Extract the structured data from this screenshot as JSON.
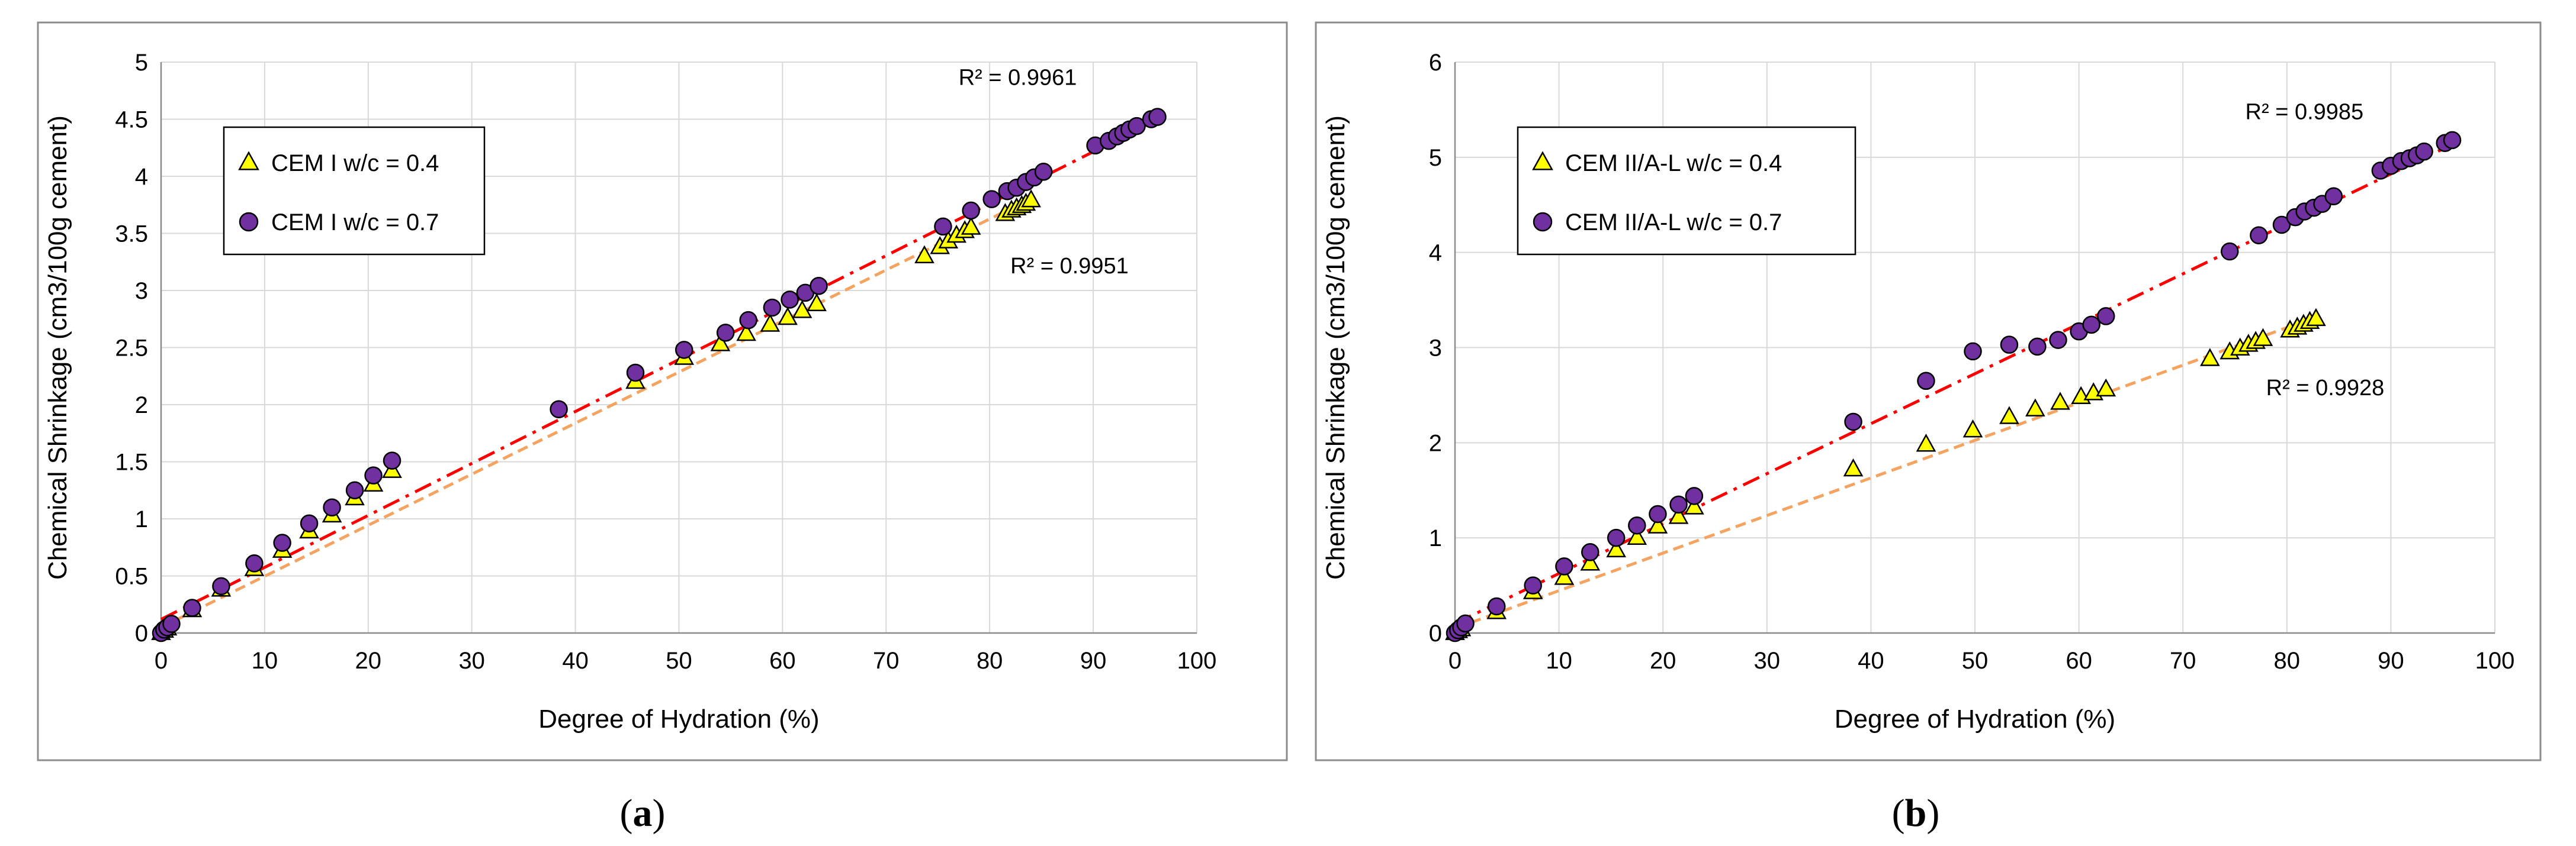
{
  "chart_data": [
    {
      "type": "scatter",
      "panel_label": "a",
      "xlabel": "Degree of Hydration (%)",
      "ylabel": "Chemical Shrinkage (cm3/100g cement)",
      "xlim": [
        0,
        100
      ],
      "ylim": [
        0,
        5
      ],
      "xticks": [
        0,
        10,
        20,
        30,
        40,
        50,
        60,
        70,
        80,
        90,
        100
      ],
      "yticks": [
        0,
        0.5,
        1,
        1.5,
        2,
        2.5,
        3,
        3.5,
        4,
        4.5,
        5
      ],
      "grid": true,
      "legend_position": "upper-left",
      "series": [
        {
          "name": "CEM  I w/c = 0.4",
          "marker": "triangle",
          "color": "#FFFF00",
          "trend_color": "#F4A460",
          "trend": {
            "slope": 0.0447,
            "intercept": 0.05,
            "x_range": [
              0,
              84
            ]
          },
          "r2_label": "R² = 0.9951",
          "r2_at": [
            82,
            3.15
          ],
          "points": [
            [
              0,
              0
            ],
            [
              0.3,
              0.02
            ],
            [
              0.6,
              0.04
            ],
            [
              3,
              0.2
            ],
            [
              5.8,
              0.38
            ],
            [
              9,
              0.56
            ],
            [
              11.7,
              0.72
            ],
            [
              14.3,
              0.89
            ],
            [
              16.5,
              1.03
            ],
            [
              18.7,
              1.18
            ],
            [
              20.5,
              1.3
            ],
            [
              22.3,
              1.42
            ],
            [
              45.8,
              2.2
            ],
            [
              50.5,
              2.41
            ],
            [
              54,
              2.53
            ],
            [
              56.5,
              2.62
            ],
            [
              58.8,
              2.7
            ],
            [
              60.5,
              2.76
            ],
            [
              61.9,
              2.82
            ],
            [
              63.3,
              2.88
            ],
            [
              73.7,
              3.3
            ],
            [
              75.2,
              3.38
            ],
            [
              76,
              3.43
            ],
            [
              76.8,
              3.48
            ],
            [
              77.6,
              3.52
            ],
            [
              78.2,
              3.55
            ],
            [
              81.5,
              3.67
            ],
            [
              82.1,
              3.7
            ],
            [
              82.6,
              3.72
            ],
            [
              83.1,
              3.74
            ],
            [
              83.5,
              3.76
            ],
            [
              84,
              3.79
            ]
          ]
        },
        {
          "name": "CEM  I w/c = 0.7",
          "marker": "circle",
          "color": "#7030A0",
          "trend_color": "#FF0000",
          "trend": {
            "slope": 0.0455,
            "intercept": 0.12,
            "x_range": [
              0,
              96
            ]
          },
          "r2_label": "R² = 0.9961",
          "r2_at": [
            77,
            4.8
          ],
          "points": [
            [
              0,
              0
            ],
            [
              0.3,
              0.03
            ],
            [
              0.6,
              0.05
            ],
            [
              1,
              0.08
            ],
            [
              3,
              0.22
            ],
            [
              5.8,
              0.41
            ],
            [
              9,
              0.61
            ],
            [
              11.7,
              0.79
            ],
            [
              14.3,
              0.96
            ],
            [
              16.5,
              1.1
            ],
            [
              18.7,
              1.25
            ],
            [
              20.5,
              1.38
            ],
            [
              22.3,
              1.51
            ],
            [
              38.4,
              1.96
            ],
            [
              45.8,
              2.28
            ],
            [
              50.5,
              2.48
            ],
            [
              54.5,
              2.63
            ],
            [
              56.7,
              2.74
            ],
            [
              59,
              2.85
            ],
            [
              60.7,
              2.92
            ],
            [
              62.2,
              2.98
            ],
            [
              63.5,
              3.04
            ],
            [
              75.5,
              3.56
            ],
            [
              78.2,
              3.7
            ],
            [
              80.2,
              3.8
            ],
            [
              81.7,
              3.87
            ],
            [
              82.6,
              3.9
            ],
            [
              83.5,
              3.95
            ],
            [
              84.3,
              3.99
            ],
            [
              85.2,
              4.04
            ],
            [
              90.2,
              4.27
            ],
            [
              91.5,
              4.31
            ],
            [
              92.3,
              4.35
            ],
            [
              92.9,
              4.38
            ],
            [
              93.5,
              4.41
            ],
            [
              94.2,
              4.44
            ],
            [
              95.6,
              4.5
            ],
            [
              96.2,
              4.52
            ]
          ]
        }
      ]
    },
    {
      "type": "scatter",
      "panel_label": "b",
      "xlabel": "Degree of Hydration (%)",
      "ylabel": "Chemical Shrinkage (cm3/100g cement)",
      "xlim": [
        0,
        100
      ],
      "ylim": [
        0,
        6
      ],
      "xticks": [
        0,
        10,
        20,
        30,
        40,
        50,
        60,
        70,
        80,
        90,
        100
      ],
      "yticks": [
        0,
        1,
        2,
        3,
        4,
        5,
        6
      ],
      "grid": true,
      "legend_position": "upper-left",
      "series": [
        {
          "name": "CEM  II/A-L w/c = 0.4",
          "marker": "triangle",
          "color": "#FFFF00",
          "trend_color": "#F4A460",
          "trend": {
            "slope": 0.0395,
            "intercept": 0.05,
            "x_range": [
              0,
              83
            ]
          },
          "r2_label": "R² = 0.9928",
          "r2_at": [
            78,
            2.5
          ],
          "points": [
            [
              0,
              0
            ],
            [
              0.3,
              0.02
            ],
            [
              0.6,
              0.04
            ],
            [
              4,
              0.22
            ],
            [
              7.5,
              0.43
            ],
            [
              10.5,
              0.58
            ],
            [
              13,
              0.73
            ],
            [
              15.5,
              0.87
            ],
            [
              17.5,
              1.0
            ],
            [
              19.5,
              1.12
            ],
            [
              21.5,
              1.22
            ],
            [
              23,
              1.32
            ],
            [
              38.3,
              1.72
            ],
            [
              45.3,
              1.98
            ],
            [
              49.8,
              2.13
            ],
            [
              53.3,
              2.27
            ],
            [
              55.8,
              2.35
            ],
            [
              58.2,
              2.42
            ],
            [
              60.2,
              2.48
            ],
            [
              61.4,
              2.52
            ],
            [
              62.6,
              2.56
            ],
            [
              72.6,
              2.88
            ],
            [
              74.5,
              2.95
            ],
            [
              75.5,
              2.99
            ],
            [
              76.3,
              3.03
            ],
            [
              77,
              3.06
            ],
            [
              77.7,
              3.09
            ],
            [
              80.3,
              3.18
            ],
            [
              81,
              3.21
            ],
            [
              81.6,
              3.24
            ],
            [
              82.2,
              3.27
            ],
            [
              82.8,
              3.3
            ]
          ]
        },
        {
          "name": "CEM  II/A-L w/c = 0.7",
          "marker": "circle",
          "color": "#7030A0",
          "trend_color": "#FF0000",
          "trend": {
            "slope": 0.0525,
            "intercept": 0.1,
            "x_range": [
              0,
              96
            ]
          },
          "r2_label": "R² = 0.9985",
          "r2_at": [
            76,
            5.4
          ],
          "points": [
            [
              0,
              0
            ],
            [
              0.3,
              0.03
            ],
            [
              0.6,
              0.06
            ],
            [
              1,
              0.1
            ],
            [
              4,
              0.28
            ],
            [
              7.5,
              0.5
            ],
            [
              10.5,
              0.7
            ],
            [
              13,
              0.85
            ],
            [
              15.5,
              1.0
            ],
            [
              17.5,
              1.13
            ],
            [
              19.5,
              1.25
            ],
            [
              21.5,
              1.35
            ],
            [
              23,
              1.44
            ],
            [
              38.3,
              2.22
            ],
            [
              45.3,
              2.65
            ],
            [
              49.8,
              2.96
            ],
            [
              53.3,
              3.03
            ],
            [
              56,
              3.01
            ],
            [
              58,
              3.08
            ],
            [
              60,
              3.17
            ],
            [
              61.2,
              3.24
            ],
            [
              62.6,
              3.33
            ],
            [
              74.5,
              4.01
            ],
            [
              77.3,
              4.18
            ],
            [
              79.5,
              4.29
            ],
            [
              80.8,
              4.37
            ],
            [
              81.7,
              4.43
            ],
            [
              82.6,
              4.47
            ],
            [
              83.4,
              4.51
            ],
            [
              84.5,
              4.59
            ],
            [
              89,
              4.86
            ],
            [
              90,
              4.91
            ],
            [
              91,
              4.96
            ],
            [
              91.8,
              4.99
            ],
            [
              92.5,
              5.02
            ],
            [
              93.2,
              5.06
            ],
            [
              95.2,
              5.15
            ],
            [
              95.9,
              5.18
            ]
          ]
        }
      ]
    }
  ]
}
